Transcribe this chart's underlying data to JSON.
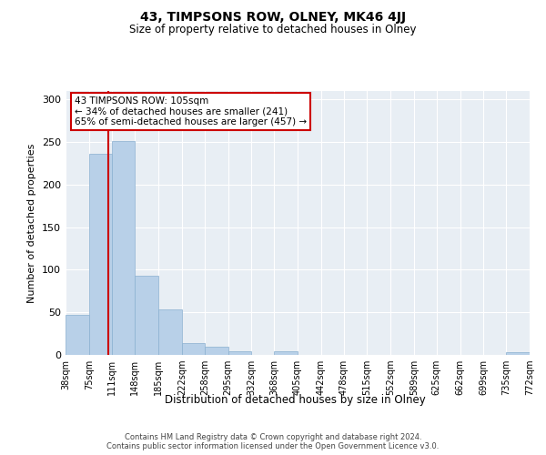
{
  "title": "43, TIMPSONS ROW, OLNEY, MK46 4JJ",
  "subtitle": "Size of property relative to detached houses in Olney",
  "xlabel": "Distribution of detached houses by size in Olney",
  "ylabel": "Number of detached properties",
  "bin_edges": [
    38,
    75,
    111,
    148,
    185,
    222,
    258,
    295,
    332,
    368,
    405,
    442,
    478,
    515,
    552,
    589,
    625,
    662,
    699,
    735,
    772
  ],
  "bin_labels": [
    "38sqm",
    "75sqm",
    "111sqm",
    "148sqm",
    "185sqm",
    "222sqm",
    "258sqm",
    "295sqm",
    "332sqm",
    "368sqm",
    "405sqm",
    "442sqm",
    "478sqm",
    "515sqm",
    "552sqm",
    "589sqm",
    "625sqm",
    "662sqm",
    "699sqm",
    "735sqm",
    "772sqm"
  ],
  "counts": [
    47,
    236,
    251,
    93,
    53,
    14,
    10,
    4,
    0,
    4,
    0,
    0,
    0,
    0,
    0,
    0,
    0,
    0,
    0,
    3
  ],
  "bar_color": "#b8d0e8",
  "bar_edge_color": "#8ab0d0",
  "vline_x": 105,
  "vline_color": "#cc0000",
  "annotation_line1": "43 TIMPSONS ROW: 105sqm",
  "annotation_line2": "← 34% of detached houses are smaller (241)",
  "annotation_line3": "65% of semi-detached houses are larger (457) →",
  "annotation_box_color": "#ffffff",
  "annotation_box_edge_color": "#cc0000",
  "ylim": [
    0,
    310
  ],
  "yticks": [
    0,
    50,
    100,
    150,
    200,
    250,
    300
  ],
  "background_color": "#e8eef4",
  "footer_line1": "Contains HM Land Registry data © Crown copyright and database right 2024.",
  "footer_line2": "Contains public sector information licensed under the Open Government Licence v3.0."
}
